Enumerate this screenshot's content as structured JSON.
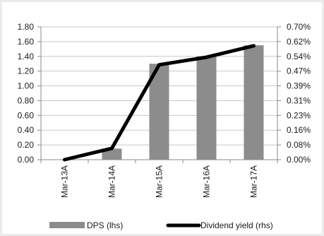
{
  "chart_data": {
    "type": "bar",
    "categories": [
      "Mar-13A",
      "Mar-14A",
      "Mar-15A",
      "Mar-16A",
      "Mar-17A"
    ],
    "series": [
      {
        "name": "DPS (lhs)",
        "type": "bar",
        "axis": "left",
        "values": [
          0.0,
          0.15,
          1.3,
          1.4,
          1.55
        ],
        "color": "#8c8c8c"
      },
      {
        "name": "Dividend yield (rhs)",
        "type": "line",
        "axis": "right",
        "values": [
          0.0,
          0.06,
          0.5,
          0.54,
          0.6
        ],
        "unit": "%",
        "color": "#000000"
      }
    ],
    "left_axis": {
      "ylim": [
        0,
        1.8
      ],
      "ticks": [
        "1.80",
        "1.60",
        "1.40",
        "1.20",
        "1.00",
        "0.80",
        "0.60",
        "0.40",
        "0.20",
        "0.00"
      ]
    },
    "right_axis": {
      "ylim": [
        0,
        0.7
      ],
      "ticks": [
        "0.70%",
        "0.62%",
        "0.54%",
        "0.47%",
        "0.39%",
        "0.31%",
        "0.23%",
        "0.16%",
        "0.08%",
        "0.00%"
      ]
    },
    "grid": true,
    "legend": "bottom"
  }
}
